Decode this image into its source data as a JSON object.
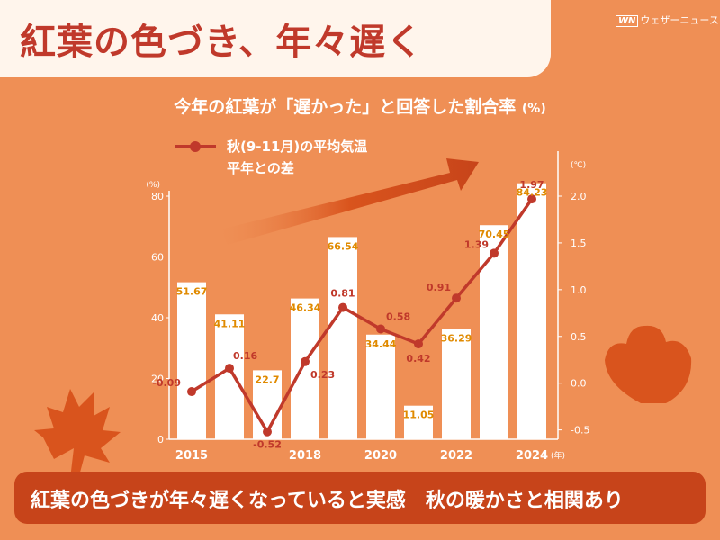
{
  "header": {
    "title": "紅葉の色づき、年々遅く",
    "brand_mark": "WN",
    "brand_name": "ウェザーニュース"
  },
  "subtitle": {
    "text": "今年の紅葉が「遅かった」と回答した割合率",
    "unit": "(%)"
  },
  "footer": {
    "text": "紅葉の色づきが年々遅くなっていると実感　秋の暖かさと相関あり"
  },
  "legend": {
    "line1": "秋(9-11月)の平均気温",
    "line2": "平年との差"
  },
  "colors": {
    "bar": "#ffffff",
    "bar_label": "#e08a00",
    "line": "#c0392b",
    "background": "#ef8f55",
    "footer": "#c7441a",
    "title": "#c0392b"
  },
  "chart_data": {
    "type": "bar",
    "years": [
      2015,
      2016,
      2017,
      2018,
      2019,
      2020,
      2021,
      2022,
      2023,
      2024
    ],
    "x_tick_labels": [
      "2015",
      "2018",
      "2020",
      "2022",
      "2024"
    ],
    "x_unit": "(年)",
    "series": [
      {
        "values": [
          51.67,
          41.11,
          22.7,
          46.34,
          66.54,
          34.44,
          11.05,
          36.29,
          70.45,
          84.23
        ],
        "axis": "left",
        "type": "bar"
      },
      {
        "values": [
          -0.09,
          0.16,
          -0.52,
          0.23,
          0.81,
          0.58,
          0.42,
          0.91,
          1.39,
          1.97
        ],
        "axis": "right",
        "type": "line"
      }
    ],
    "labels_bar": [
      "51.67",
      "41.11",
      "22.7",
      "46.34",
      "66.54",
      "34.44",
      "11.05",
      "36.29",
      "70.45",
      "84.23"
    ],
    "labels_line": [
      "-0.09",
      "0.16",
      "-0.52",
      "0.23",
      "0.81",
      "0.58",
      "0.42",
      "0.91",
      "1.39",
      "1.97"
    ],
    "y_left": {
      "unit": "(%)",
      "range": [
        0,
        80
      ],
      "ticks": [
        "0",
        "20",
        "40",
        "60",
        "80"
      ]
    },
    "y_right": {
      "unit": "(℃)",
      "range": [
        -0.6,
        2.0
      ],
      "ticks": [
        "-0.5",
        "0.0",
        "0.5",
        "1.0",
        "1.5",
        "2.0"
      ]
    },
    "grid": false
  }
}
